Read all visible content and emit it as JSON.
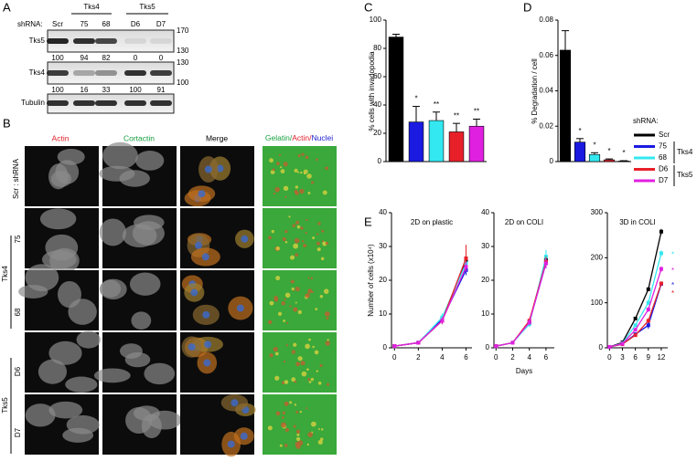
{
  "panel_labels": [
    "A",
    "B",
    "C",
    "D",
    "E"
  ],
  "blot": {
    "shrna_label": "shRNA:",
    "lanes": [
      "Scr",
      "75",
      "68",
      "D6",
      "D7"
    ],
    "groups": [
      "Tks4",
      "Tks5"
    ],
    "rows": [
      {
        "label": "Tks5",
        "markers": [
          170,
          130
        ],
        "quant": [
          100,
          94,
          82,
          0,
          0
        ]
      },
      {
        "label": "Tks4",
        "markers": [
          130,
          100
        ],
        "quant": [
          100,
          16,
          33,
          100,
          91
        ]
      },
      {
        "label": "Tubulin"
      }
    ]
  },
  "microscopy": {
    "columns": [
      "Actin",
      "Cortactin",
      "Merge"
    ],
    "stain_label": [
      "Gelatin/",
      "Actin/",
      "Nuclei"
    ],
    "scr_label": "Scr : shRNA",
    "rows": [
      "75",
      "68",
      "D6",
      "D7"
    ],
    "groups": [
      "Tks4",
      "Tks5"
    ]
  },
  "legend": {
    "title": "shRNA:",
    "entries": [
      "Scr",
      "75",
      "68",
      "D6",
      "D7"
    ],
    "colors": [
      "#000000",
      "#1a1ae0",
      "#33e8f0",
      "#e8202a",
      "#e020e0"
    ],
    "groups": [
      "Tks4",
      "Tks5"
    ]
  },
  "chart_data": [
    {
      "type": "bar",
      "ylabel": "% cells with invadopodia",
      "values": [
        88,
        28,
        29,
        21,
        25
      ],
      "errors": [
        2,
        11,
        6,
        6,
        5
      ],
      "colors": [
        "#000000",
        "#1a1ae0",
        "#33e8f0",
        "#e8202a",
        "#e020e0"
      ],
      "significance": [
        null,
        "*",
        "**",
        "**",
        "**"
      ],
      "ylim": [
        0,
        100
      ],
      "yticks": [
        0,
        20,
        40,
        60,
        80,
        100
      ]
    },
    {
      "type": "bar",
      "ylabel": "% Degradation / cell",
      "values": [
        0.063,
        0.011,
        0.004,
        0.001,
        0.0003
      ],
      "errors": [
        0.011,
        0.002,
        0.001,
        0.0005,
        0.0002
      ],
      "colors": [
        "#000000",
        "#1a1ae0",
        "#33e8f0",
        "#e8202a",
        "#e020e0"
      ],
      "significance": [
        null,
        "*",
        "*",
        "*",
        "*"
      ],
      "ylim": [
        0,
        0.08
      ],
      "yticks": [
        0,
        0.02,
        0.04,
        0.06,
        0.08
      ]
    },
    {
      "type": "line",
      "title": "2D on plastic",
      "ylabel": "Number of cells (x10⁴)",
      "x": [
        0,
        2,
        4,
        6
      ],
      "xlim": [
        -0.25,
        6.5
      ],
      "xticks": [
        0,
        2,
        4,
        6
      ],
      "ylim": [
        0,
        40
      ],
      "yticks": [
        0,
        10,
        20,
        30,
        40
      ],
      "series": [
        {
          "color": "#000000",
          "values": [
            0.5,
            1.5,
            8,
            26
          ],
          "errors": [
            0.2,
            0.3,
            1,
            2
          ]
        },
        {
          "color": "#1a1ae0",
          "values": [
            0.5,
            1.5,
            8.5,
            23
          ],
          "errors": [
            0.2,
            0.3,
            1,
            1.5
          ]
        },
        {
          "color": "#33e8f0",
          "values": [
            0.5,
            1.5,
            9,
            25
          ],
          "errors": [
            0.2,
            0.3,
            1.2,
            1.5
          ]
        },
        {
          "color": "#e8202a",
          "values": [
            0.5,
            1.5,
            8,
            26.5
          ],
          "errors": [
            0.2,
            0.3,
            1,
            4
          ]
        },
        {
          "color": "#e020e0",
          "values": [
            0.5,
            1.5,
            8,
            24
          ],
          "errors": [
            0.2,
            0.3,
            1,
            1.5
          ]
        }
      ]
    },
    {
      "type": "line",
      "title": "2D on COLI",
      "xlabel": "Days",
      "x": [
        0,
        2,
        4,
        6
      ],
      "xlim": [
        -0.25,
        7
      ],
      "xticks": [
        0,
        2,
        4,
        6
      ],
      "ylim": [
        0,
        40
      ],
      "yticks": [
        0,
        10,
        20,
        30,
        40
      ],
      "series": [
        {
          "color": "#000000",
          "values": [
            0.5,
            1.5,
            7.5,
            26
          ],
          "errors": [
            0.2,
            0.3,
            0.8,
            1.5
          ]
        },
        {
          "color": "#1a1ae0",
          "values": [
            0.5,
            1.5,
            7.5,
            25
          ],
          "errors": [
            0.2,
            0.3,
            0.8,
            1.5
          ]
        },
        {
          "color": "#33e8f0",
          "values": [
            0.5,
            1.5,
            7,
            27
          ],
          "errors": [
            0.2,
            0.3,
            0.8,
            2
          ]
        },
        {
          "color": "#e8202a",
          "values": [
            0.5,
            1.5,
            8,
            25.5
          ],
          "errors": [
            0.2,
            0.3,
            0.8,
            1.5
          ]
        },
        {
          "color": "#e020e0",
          "values": [
            0.5,
            1.5,
            7.5,
            25
          ],
          "errors": [
            0.2,
            0.3,
            0.8,
            1.5
          ]
        }
      ]
    },
    {
      "type": "line",
      "title": "3D in COLI",
      "x": [
        0,
        3,
        6,
        9,
        12
      ],
      "xlim": [
        -0.5,
        13.5
      ],
      "xticks": [
        0,
        3,
        6,
        9,
        12
      ],
      "ylim": [
        0,
        300
      ],
      "yticks": [
        0,
        100,
        200,
        300
      ],
      "series": [
        {
          "color": "#000000",
          "values": [
            2,
            12,
            65,
            130,
            258
          ],
          "errors": [
            1,
            2,
            3,
            4,
            6
          ]
        },
        {
          "color": "#1a1ae0",
          "values": [
            2,
            8,
            30,
            50,
            142
          ],
          "errors": [
            1,
            2,
            3,
            8,
            4
          ],
          "significance": "*"
        },
        {
          "color": "#33e8f0",
          "values": [
            2,
            10,
            50,
            100,
            210
          ],
          "errors": [
            1,
            2,
            3,
            5,
            6
          ],
          "significance": "*"
        },
        {
          "color": "#e8202a",
          "values": [
            2,
            8,
            28,
            60,
            143
          ],
          "errors": [
            1,
            2,
            3,
            5,
            4
          ],
          "significance": "*"
        },
        {
          "color": "#e020e0",
          "values": [
            2,
            9,
            40,
            85,
            175
          ],
          "errors": [
            1,
            2,
            3,
            5,
            6
          ],
          "significance": "*"
        }
      ]
    }
  ]
}
